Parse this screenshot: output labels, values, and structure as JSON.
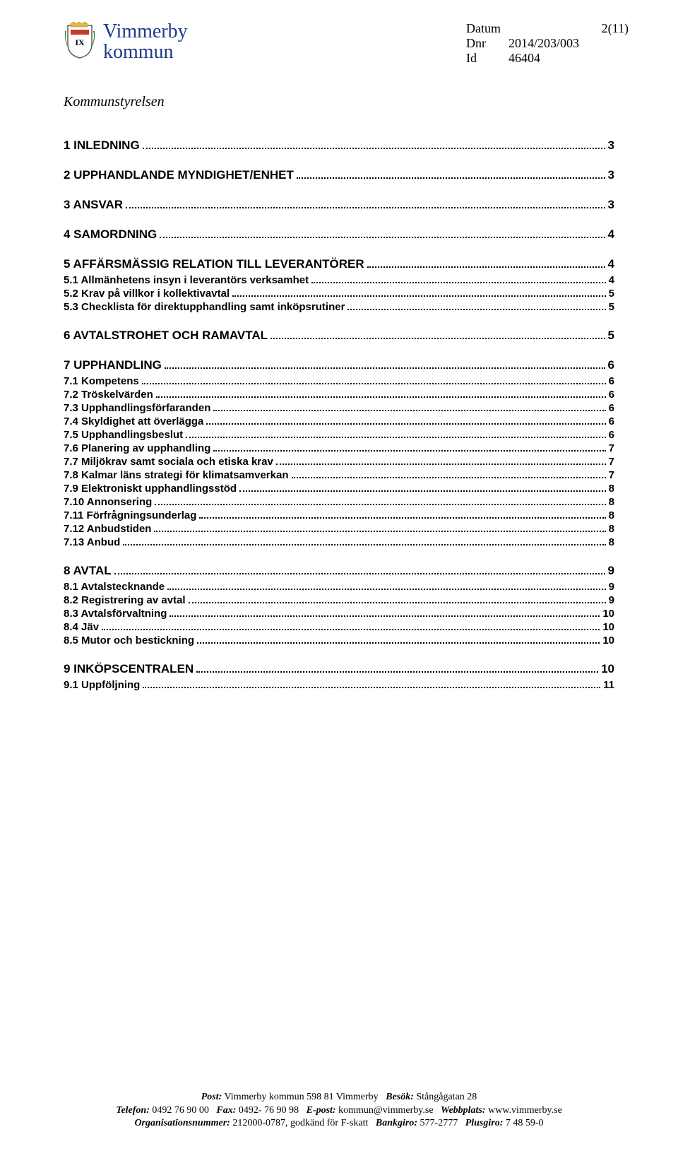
{
  "header": {
    "org_line1": "Vimmerby",
    "org_line2": "kommun",
    "meta": [
      {
        "label": "Datum",
        "value": ""
      },
      {
        "label": "Dnr",
        "value": "2014/203/003"
      },
      {
        "label": "Id",
        "value": "46404"
      }
    ],
    "page_counter": "2(11)",
    "department": "Kommunstyrelsen"
  },
  "crest_colors": {
    "shield_fill": "#ffffff",
    "shield_stroke": "#5a5a5a",
    "crown": "#e2b93b",
    "banner": "#c43a2e",
    "leaves": "#3a7a2f",
    "ix_text": "#000000"
  },
  "toc": [
    {
      "level": 1,
      "title": "1 INLEDNING",
      "page": "3"
    },
    {
      "level": 1,
      "title": "2 UPPHANDLANDE MYNDIGHET/ENHET",
      "page": "3"
    },
    {
      "level": 1,
      "title": "3 ANSVAR",
      "page": "3"
    },
    {
      "level": 1,
      "title": "4 SAMORDNING",
      "page": "4"
    },
    {
      "level": 1,
      "title": "5 AFFÄRSMÄSSIG RELATION TILL LEVERANTÖRER",
      "page": "4"
    },
    {
      "level": 2,
      "title": "5.1 Allmänhetens insyn i leverantörs verksamhet",
      "page": "4"
    },
    {
      "level": 2,
      "title": "5.2 Krav på villkor i kollektivavtal",
      "page": "5"
    },
    {
      "level": 2,
      "title": "5.3 Checklista för direktupphandling samt inköpsrutiner",
      "page": "5"
    },
    {
      "level": 1,
      "title": "6 AVTALSTROHET OCH RAMAVTAL",
      "page": "5"
    },
    {
      "level": 1,
      "title": "7 UPPHANDLING",
      "page": "6"
    },
    {
      "level": 2,
      "title": "7.1 Kompetens",
      "page": "6"
    },
    {
      "level": 2,
      "title": "7.2 Tröskelvärden",
      "page": "6"
    },
    {
      "level": 2,
      "title": "7.3 Upphandlingsförfaranden",
      "page": "6"
    },
    {
      "level": 2,
      "title": "7.4 Skyldighet att överlägga",
      "page": "6"
    },
    {
      "level": 2,
      "title": "7.5 Upphandlingsbeslut",
      "page": "6"
    },
    {
      "level": 2,
      "title": "7.6 Planering av upphandling",
      "page": "7"
    },
    {
      "level": 2,
      "title": "7.7 Miljökrav samt sociala och etiska krav",
      "page": "7"
    },
    {
      "level": 2,
      "title": "7.8 Kalmar läns strategi för klimatsamverkan",
      "page": "7"
    },
    {
      "level": 2,
      "title": "7.9 Elektroniskt upphandlingsstöd",
      "page": "8"
    },
    {
      "level": 2,
      "title": "7.10 Annonsering",
      "page": "8"
    },
    {
      "level": 2,
      "title": "7.11 Förfrågningsunderlag",
      "page": "8"
    },
    {
      "level": 2,
      "title": "7.12 Anbudstiden",
      "page": "8"
    },
    {
      "level": 2,
      "title": "7.13 Anbud",
      "page": "8"
    },
    {
      "level": 1,
      "title": "8 AVTAL",
      "page": "9"
    },
    {
      "level": 2,
      "title": "8.1 Avtalstecknande",
      "page": "9"
    },
    {
      "level": 2,
      "title": "8.2 Registrering av avtal",
      "page": "9"
    },
    {
      "level": 2,
      "title": "8.3 Avtalsförvaltning",
      "page": "10"
    },
    {
      "level": 2,
      "title": "8.4 Jäv",
      "page": "10"
    },
    {
      "level": 2,
      "title": "8.5 Mutor och bestickning",
      "page": "10"
    },
    {
      "level": 1,
      "title": "9 INKÖPSCENTRALEN",
      "page": "10"
    },
    {
      "level": 2,
      "title": "9.1 Uppföljning",
      "page": "11"
    }
  ],
  "footer": {
    "post_label": "Post:",
    "post_value": "Vimmerby kommun 598 81 Vimmerby",
    "besok_label": "Besök:",
    "besok_value": "Stångågatan 28",
    "telefon_label": "Telefon:",
    "telefon_value": "0492 76 90 00",
    "fax_label": "Fax:",
    "fax_value": "0492- 76 90 98",
    "epost_label": "E-post:",
    "epost_value": "kommun@vimmerby.se",
    "webb_label": "Webbplats:",
    "webb_value": "www.vimmerby.se",
    "orgnr_label": "Organisationsnummer:",
    "orgnr_value": "212000-0787, godkänd för F-skatt",
    "bankgiro_label": "Bankgiro:",
    "bankgiro_value": "577-2777",
    "plusgiro_label": "Plusgiro:",
    "plusgiro_value": "7 48 59-0"
  }
}
